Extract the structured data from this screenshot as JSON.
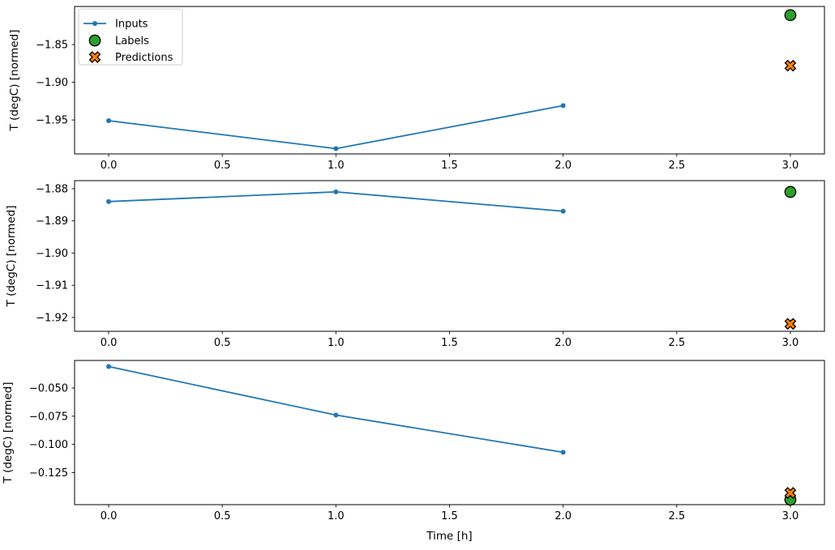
{
  "figure": {
    "background": "#ffffff",
    "text_color": "#000000",
    "axis_color": "#000000",
    "xlabel": "Time [h]",
    "ylabel": "T (degC) [normed]",
    "x_tick_labels": [
      "0.0",
      "0.5",
      "1.0",
      "1.5",
      "2.0",
      "2.5",
      "3.0"
    ],
    "legend": {
      "position": "upper-left",
      "background": "#ffffff",
      "border_color": "#cccccc",
      "entries": [
        {
          "label": "Inputs",
          "marker": "line-dot",
          "color": "#1f77b4",
          "edge": "#1f77b4"
        },
        {
          "label": "Labels",
          "marker": "circle",
          "color": "#2ca02c",
          "edge": "#000000"
        },
        {
          "label": "Predictions",
          "marker": "X",
          "color": "#ff7f0e",
          "edge": "#000000"
        }
      ]
    }
  },
  "chart_data": [
    {
      "type": "line",
      "title": "",
      "xlabel": "",
      "ylabel": "T (degC) [normed]",
      "x_ticks": [
        0.0,
        0.5,
        1.0,
        1.5,
        2.0,
        2.5,
        3.0
      ],
      "y_ticks": [
        -1.85,
        -1.9,
        -1.95
      ],
      "y_tick_labels": [
        "−1.85",
        "−1.90",
        "−1.95"
      ],
      "xlim": [
        -0.15,
        3.15
      ],
      "ylim": [
        -1.995,
        -1.7995
      ],
      "grid": false,
      "legend": true,
      "series": [
        {
          "name": "Inputs",
          "plot": "line",
          "marker": "dot",
          "color": "#1f77b4",
          "x": [
            0,
            1,
            2
          ],
          "y": [
            -1.951,
            -1.988,
            -1.931
          ]
        },
        {
          "name": "Labels",
          "plot": "scatter",
          "marker": "circle",
          "color": "#2ca02c",
          "edge": "#000000",
          "x": [
            3
          ],
          "y": [
            -1.811
          ]
        },
        {
          "name": "Predictions",
          "plot": "scatter",
          "marker": "X",
          "color": "#ff7f0e",
          "edge": "#000000",
          "x": [
            3
          ],
          "y": [
            -1.878
          ]
        }
      ]
    },
    {
      "type": "line",
      "title": "",
      "xlabel": "",
      "ylabel": "T (degC) [normed]",
      "x_ticks": [
        0.0,
        0.5,
        1.0,
        1.5,
        2.0,
        2.5,
        3.0
      ],
      "y_ticks": [
        -1.88,
        -1.89,
        -1.9,
        -1.91,
        -1.92
      ],
      "y_tick_labels": [
        "−1.88",
        "−1.89",
        "−1.90",
        "−1.91",
        "−1.92"
      ],
      "xlim": [
        -0.15,
        3.15
      ],
      "ylim": [
        -1.9243,
        -1.8775
      ],
      "grid": false,
      "legend": false,
      "series": [
        {
          "name": "Inputs",
          "plot": "line",
          "marker": "dot",
          "color": "#1f77b4",
          "x": [
            0,
            1,
            2
          ],
          "y": [
            -1.884,
            -1.881,
            -1.887
          ]
        },
        {
          "name": "Labels",
          "plot": "scatter",
          "marker": "circle",
          "color": "#2ca02c",
          "edge": "#000000",
          "x": [
            3
          ],
          "y": [
            -1.881
          ]
        },
        {
          "name": "Predictions",
          "plot": "scatter",
          "marker": "X",
          "color": "#ff7f0e",
          "edge": "#000000",
          "x": [
            3
          ],
          "y": [
            -1.922
          ]
        }
      ]
    },
    {
      "type": "line",
      "title": "",
      "xlabel": "Time [h]",
      "ylabel": "T (degC) [normed]",
      "x_ticks": [
        0.0,
        0.5,
        1.0,
        1.5,
        2.0,
        2.5,
        3.0
      ],
      "y_ticks": [
        -0.05,
        -0.075,
        -0.1,
        -0.125
      ],
      "y_tick_labels": [
        "−0.050",
        "−0.075",
        "−0.100",
        "−0.125"
      ],
      "xlim": [
        -0.15,
        3.15
      ],
      "ylim": [
        -0.1534,
        -0.0256
      ],
      "grid": false,
      "legend": false,
      "series": [
        {
          "name": "Inputs",
          "plot": "line",
          "marker": "dot",
          "color": "#1f77b4",
          "x": [
            0,
            1,
            2
          ],
          "y": [
            -0.031,
            -0.074,
            -0.107
          ]
        },
        {
          "name": "Labels",
          "plot": "scatter",
          "marker": "circle",
          "color": "#2ca02c",
          "edge": "#000000",
          "x": [
            3
          ],
          "y": [
            -0.149
          ]
        },
        {
          "name": "Predictions",
          "plot": "scatter",
          "marker": "X",
          "color": "#ff7f0e",
          "edge": "#000000",
          "x": [
            3
          ],
          "y": [
            -0.143
          ]
        }
      ]
    }
  ]
}
